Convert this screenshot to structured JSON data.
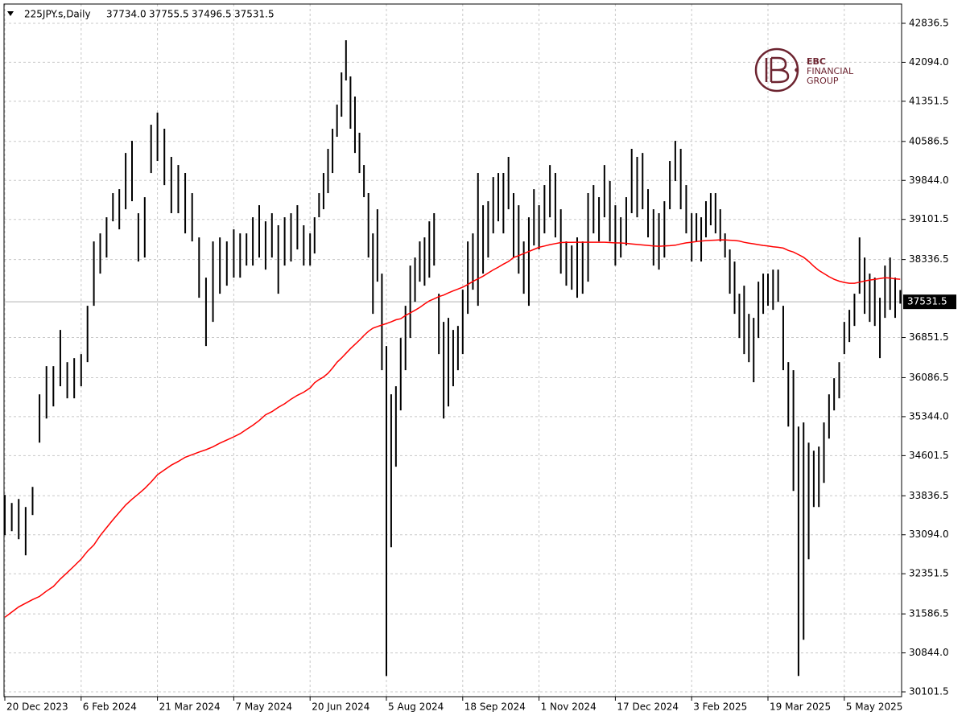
{
  "chart_data": {
    "type": "ohlc",
    "symbol": "225JPY.s,Daily",
    "last_bar": [
      {
        "value": 37734,
        "label": "37734.0"
      },
      37755.5,
      37496.5,
      37531.5
    ],
    "last_price": 37531.5,
    "bar_color": "#000000",
    "ma_color": "#ff0000",
    "grid": true,
    "ylim": [
      30010,
      43204
    ],
    "yticks": [
      42836.5,
      {
        "value": 42094,
        "label": "42094.0"
      },
      41351.5,
      40586.5,
      {
        "value": 39844,
        "label": "39844.0"
      },
      39101.5,
      38336.5,
      36851.5,
      36086.5,
      {
        "value": 35344,
        "label": "35344.0"
      },
      34601.5,
      33836.5,
      {
        "value": 33094,
        "label": "33094.0"
      },
      32351.5,
      31586.5,
      {
        "value": 30844,
        "label": "30844.0"
      },
      30101.5
    ],
    "categories": [
      "20 Dec 2023",
      null,
      null,
      null,
      null,
      null,
      null,
      null,
      null,
      null,
      null,
      "6 Feb 2024",
      null,
      null,
      null,
      null,
      null,
      null,
      null,
      null,
      null,
      null,
      null,
      "21 Mar 2024",
      null,
      null,
      null,
      null,
      null,
      null,
      null,
      null,
      null,
      null,
      "7 May 2024",
      null,
      null,
      null,
      null,
      null,
      null,
      null,
      null,
      null,
      null,
      null,
      "20 Jun 2024",
      null,
      null,
      null,
      null,
      null,
      null,
      null,
      null,
      null,
      null,
      null,
      null,
      null,
      null,
      null,
      null,
      "5 Aug 2024",
      null,
      null,
      null,
      null,
      null,
      null,
      null,
      null,
      null,
      null,
      null,
      null,
      null,
      null,
      null,
      "18 Sep 2024",
      null,
      null,
      null,
      null,
      null,
      null,
      null,
      null,
      null,
      null,
      null,
      null,
      null,
      null,
      "1 Nov 2024",
      null,
      null,
      null,
      null,
      null,
      null,
      null,
      null,
      null,
      null,
      null,
      null,
      null,
      "17 Dec 2024",
      null,
      null,
      null,
      null,
      null,
      null,
      null,
      null,
      null,
      null,
      null,
      null,
      null,
      "3 Feb 2025",
      null,
      null,
      null,
      null,
      null,
      null,
      null,
      null,
      null,
      null,
      null,
      null,
      null,
      null,
      null,
      "19 Mar 2025",
      null,
      null,
      null,
      null,
      null,
      null,
      null,
      null,
      null,
      null,
      null,
      null,
      null,
      null,
      "5 May 2025",
      null,
      null,
      null,
      null,
      null,
      null,
      null,
      null,
      null,
      null,
      null
    ],
    "high": [
      33853,
      33700,
      33776,
      33623,
      34006,
      35769,
      36306,
      36306,
      36996,
      36382,
      36459,
      36536,
      37456,
      38682,
      38835,
      39142,
      39602,
      39678,
      40368,
      40598,
      39219,
      39525,
      40905,
      41135,
      40828,
      40292,
      40138,
      39985,
      39602,
      38759,
      37992,
      38682,
      38759,
      38682,
      38912,
      38835,
      38835,
      39142,
      39372,
      39065,
      39219,
      38989,
      39142,
      39219,
      39372,
      38989,
      38835,
      39142,
      39602,
      39985,
      40445,
      40828,
      41288,
      41901,
      42514,
      41825,
      41441,
      40752,
      40138,
      39602,
      38835,
      39295,
      38069,
      36689,
      35769,
      35923,
      36842,
      37456,
      38222,
      38375,
      38682,
      38759,
      39065,
      39219,
      37686,
      37149,
      37226,
      36996,
      37072,
      37762,
      38682,
      38835,
      39985,
      39372,
      39448,
      39908,
      39985,
      39985,
      40292,
      39602,
      39372,
      38682,
      39142,
      39678,
      39372,
      39755,
      40138,
      39985,
      39295,
      38682,
      38605,
      38759,
      38682,
      39602,
      39755,
      39525,
      40138,
      39832,
      39372,
      39142,
      39525,
      40445,
      40292,
      40368,
      39678,
      39295,
      39219,
      39448,
      40215,
      40598,
      40445,
      39755,
      39219,
      39219,
      39142,
      39448,
      39602,
      39602,
      39295,
      38835,
      38529,
      38299,
      37686,
      37839,
      37302,
      37226,
      37915,
      38069,
      38069,
      38145,
      38145,
      37456,
      36382,
      36229,
      35156,
      35233,
      34849,
      34696,
      34773,
      35233,
      35769,
      36076,
      36382,
      37149,
      37379,
      37686,
      38759,
      38375,
      38069,
      37992,
      37609,
      38222,
      38375,
      37992,
      37755.5
    ],
    "low": [
      33087,
      33163,
      33010,
      32703,
      33470,
      34849,
      35309,
      35539,
      35923,
      35693,
      35693,
      35923,
      36382,
      37456,
      38069,
      38375,
      39065,
      38912,
      39295,
      39448,
      38299,
      38375,
      39985,
      40215,
      39755,
      39219,
      39219,
      38835,
      38682,
      37609,
      36689,
      37149,
      37686,
      37839,
      37992,
      37992,
      38222,
      38222,
      38375,
      38145,
      38375,
      37686,
      38222,
      38299,
      38529,
      38222,
      38222,
      38452,
      39142,
      39295,
      39602,
      39985,
      40675,
      41058,
      41748,
      40828,
      40368,
      39985,
      39525,
      38375,
      37302,
      37915,
      36229,
      30404,
      32857,
      34390,
      35463,
      36229,
      36842,
      37532,
      37915,
      37839,
      37992,
      38222,
      36536,
      35309,
      35539,
      35923,
      36229,
      36536,
      37302,
      37762,
      37456,
      38069,
      38375,
      38835,
      39065,
      38835,
      39295,
      38375,
      38069,
      37686,
      37456,
      38605,
      38529,
      38835,
      39142,
      38759,
      38069,
      37839,
      37762,
      37609,
      37686,
      37915,
      38835,
      38682,
      39142,
      38682,
      38222,
      38375,
      38605,
      39219,
      39142,
      39295,
      38759,
      38222,
      38145,
      38375,
      39295,
      39832,
      39295,
      38835,
      38299,
      38682,
      38299,
      38759,
      38989,
      38835,
      38682,
      38375,
      37686,
      37302,
      36842,
      36536,
      36382,
      35999,
      36842,
      37302,
      37456,
      37379,
      37532,
      36229,
      35156,
      33930,
      30404,
      31094,
      32627,
      33623,
      33623,
      34083,
      34926,
      35463,
      35693,
      36536,
      36766,
      37072,
      37686,
      37302,
      37149,
      37072,
      36459,
      37226,
      37379,
      37226,
      37496.5
    ],
    "ma": [
      31523,
      31620,
      31720,
      31790,
      31860,
      31920,
      32020,
      32110,
      32250,
      32375,
      32500,
      32630,
      32780,
      32900,
      33080,
      33230,
      33380,
      33520,
      33660,
      33770,
      33870,
      33976,
      34100,
      34236,
      34330,
      34420,
      34490,
      34570,
      34620,
      34670,
      34715,
      34770,
      34840,
      34900,
      34960,
      35020,
      35100,
      35180,
      35270,
      35380,
      35440,
      35520,
      35590,
      35677,
      35750,
      35810,
      35890,
      35990,
      36050,
      36100,
      36170,
      36270,
      36380,
      36460,
      36550,
      36640,
      36720,
      36800,
      36890,
      36970,
      37030,
      37060,
      37090,
      37118,
      37150,
      37190,
      37210,
      37270,
      37320,
      37370,
      37425,
      37490,
      37550,
      37590,
      37630,
      37660,
      37701,
      37740,
      37775,
      37810,
      37860,
      37920,
      37970,
      38020,
      38080,
      38140,
      38191,
      38250,
      38300,
      38375,
      38410,
      38450,
      38490,
      38530,
      38570,
      38595,
      38620,
      38640,
      38660,
      38665,
      38665,
      38667,
      38667,
      38667,
      38667,
      38667,
      38667,
      38660,
      38655,
      38652,
      38645,
      38635,
      38623,
      38615,
      38605,
      38595,
      38590,
      38595,
      38600,
      38610,
      38635,
      38655,
      38667,
      38680,
      38690,
      38697,
      38702,
      38707,
      38712,
      38710,
      38705,
      38700,
      38690,
      38665,
      38650,
      38636,
      38620,
      38605,
      38595,
      38580,
      38570,
      38555,
      38510,
      38480,
      38430,
      38380,
      38300,
      38210,
      38130,
      38070,
      38010,
      37960,
      37925,
      37900,
      37885,
      37885,
      37905,
      37930,
      37946,
      37960,
      37975,
      37990,
      37985,
      37970,
      37962
    ]
  },
  "logo": {
    "lines": [
      "EBC",
      "FINANCIAL",
      "GROUP"
    ]
  }
}
